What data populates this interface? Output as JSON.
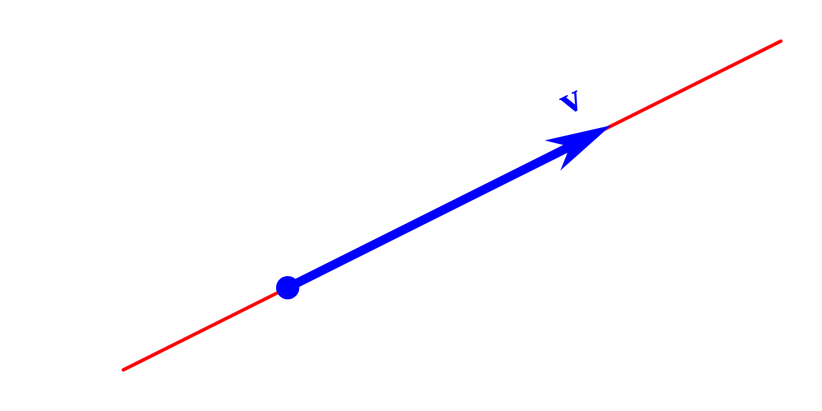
{
  "vector": {
    "label": "v"
  }
}
